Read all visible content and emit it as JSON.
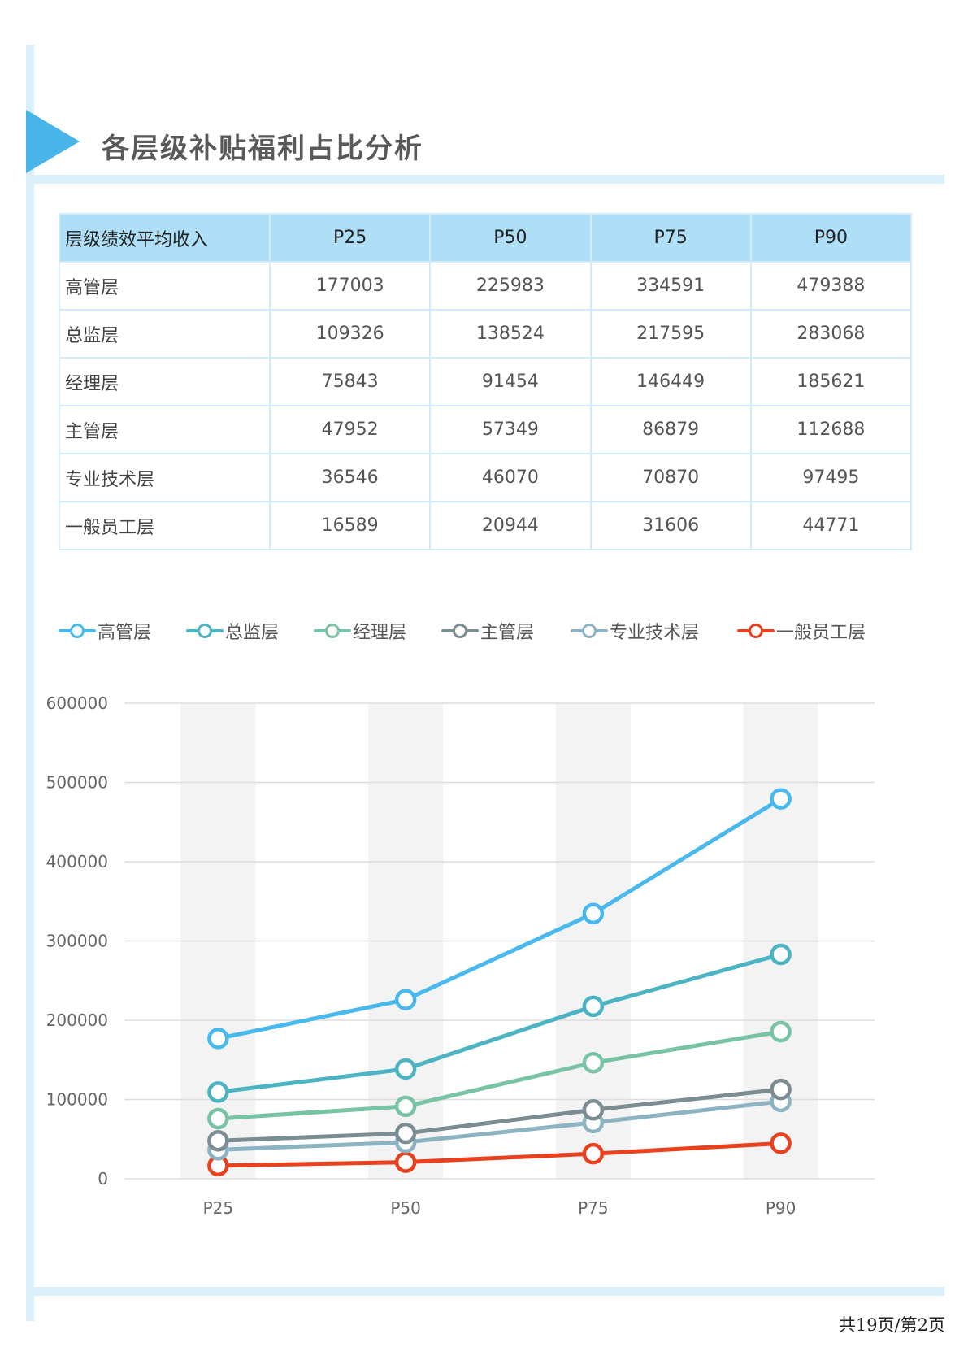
{
  "page": {
    "title": "各层级补贴福利占比分析",
    "page_number": "共19页/第2页"
  },
  "table": {
    "headers": [
      "层级绩效平均收入",
      "P25",
      "P50",
      "P75",
      "P90"
    ],
    "rows": [
      {
        "label": "高管层",
        "values": [
          "177003",
          "225983",
          "334591",
          "479388"
        ]
      },
      {
        "label": "总监层",
        "values": [
          "109326",
          "138524",
          "217595",
          "283068"
        ]
      },
      {
        "label": "经理层",
        "values": [
          "75843",
          "91454",
          "146449",
          "185621"
        ]
      },
      {
        "label": "主管层",
        "values": [
          "47952",
          "57349",
          "86879",
          "112688"
        ]
      },
      {
        "label": "专业技术层",
        "values": [
          "36546",
          "46070",
          "70870",
          "97495"
        ]
      },
      {
        "label": "一般员工层",
        "values": [
          "16589",
          "20944",
          "31606",
          "44771"
        ]
      }
    ]
  },
  "chart_data": {
    "type": "line",
    "categories": [
      "P25",
      "P50",
      "P75",
      "P90"
    ],
    "ylim": [
      0,
      600000
    ],
    "yticks": [
      "0",
      "100000",
      "200000",
      "300000",
      "400000",
      "500000",
      "600000"
    ],
    "grid": true,
    "legend_position": "top-left",
    "series": [
      {
        "name": "高管层",
        "color": "#49b8ec",
        "values": [
          177003,
          225983,
          334591,
          479388
        ]
      },
      {
        "name": "总监层",
        "color": "#4cb3c3",
        "values": [
          109326,
          138524,
          217595,
          283068
        ]
      },
      {
        "name": "经理层",
        "color": "#79c3a5",
        "values": [
          75843,
          91454,
          146449,
          185621
        ]
      },
      {
        "name": "主管层",
        "color": "#7b8c92",
        "values": [
          47952,
          57349,
          86879,
          112688
        ]
      },
      {
        "name": "专业技术层",
        "color": "#8cb3c1",
        "values": [
          36546,
          46070,
          70870,
          97495
        ]
      },
      {
        "name": "一般员工层",
        "color": "#e9401e",
        "values": [
          16589,
          20944,
          31606,
          44771
        ]
      }
    ]
  }
}
